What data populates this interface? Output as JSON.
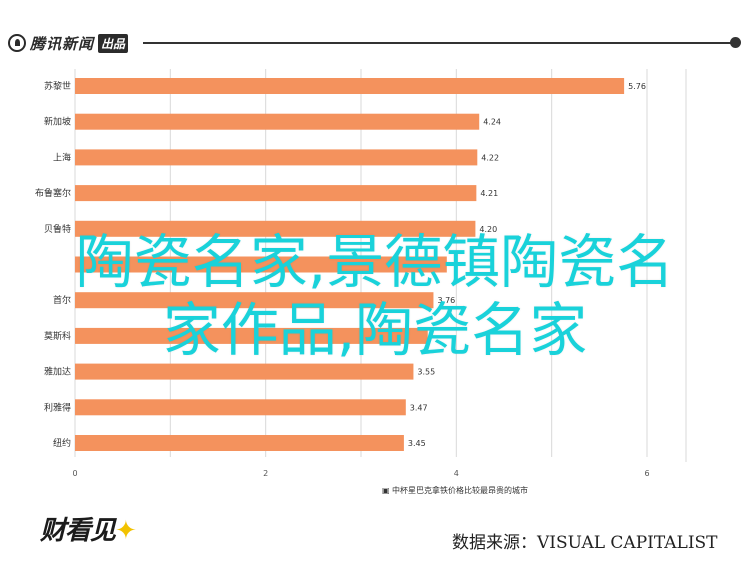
{
  "header": {
    "logo_text": "腾讯新闻",
    "logo_badge": "出品"
  },
  "overlay": {
    "line1": "陶瓷名家,景德镇陶瓷名",
    "line2": "家作品,陶瓷名家"
  },
  "footer": {
    "brand": "财看见",
    "source": "数据来源：VISUAL CAPITALIST"
  },
  "chart_data": {
    "type": "bar",
    "orientation": "horizontal",
    "categories": [
      "苏黎世",
      "新加坡",
      "上海",
      "布鲁塞尔",
      "贝鲁特",
      "",
      "首尔",
      "莫斯科",
      "雅加达",
      "利雅得",
      "纽约"
    ],
    "values": [
      5.76,
      4.24,
      4.22,
      4.21,
      4.2,
      3.9,
      3.76,
      3.7,
      3.55,
      3.47,
      3.45
    ],
    "value_labels": [
      "5.76",
      "4.24",
      "4.22",
      "4.21",
      "4.20",
      "",
      "3.76",
      "",
      "3.55",
      "3.47",
      "3.45"
    ],
    "xlabel": "中杯星巴克拿铁价格比较最昂贵的城市",
    "xticks": [
      "0",
      "2",
      "4",
      "6"
    ],
    "xlim": [
      0,
      6.4
    ],
    "grid": true,
    "bar_color": "#f4925d"
  }
}
